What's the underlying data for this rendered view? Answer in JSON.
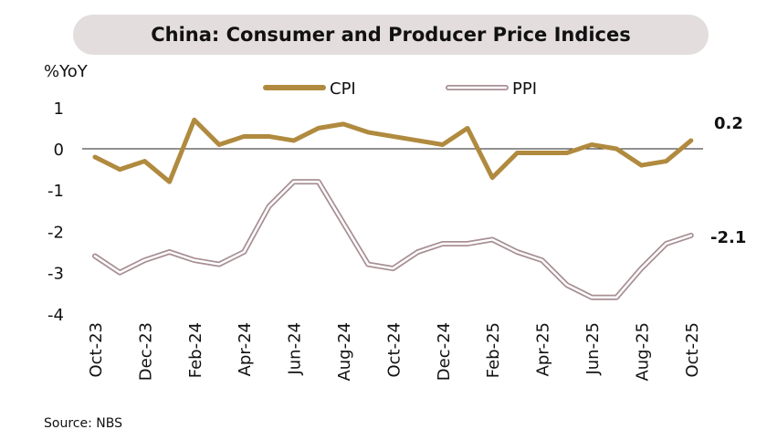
{
  "chart_data": {
    "type": "line",
    "title": "China: Consumer and Producer Price Indices",
    "ylabel": "%YoY",
    "source": "Source: NBS",
    "ylim": [
      -4,
      1
    ],
    "yticks": [
      "1",
      "0",
      "-1",
      "-2",
      "-3",
      "-4"
    ],
    "x": [
      "Oct-23",
      "Nov-23",
      "Dec-23",
      "Jan-24",
      "Feb-24",
      "Mar-24",
      "Apr-24",
      "May-24",
      "Jun-24",
      "Jul-24",
      "Aug-24",
      "Sep-24",
      "Oct-24",
      "Nov-24",
      "Dec-24",
      "Jan-25",
      "Feb-25",
      "Mar-25",
      "Apr-25",
      "May-25",
      "Jun-25",
      "Jul-25",
      "Aug-25",
      "Sep-25",
      "Oct-25"
    ],
    "xtick_labels": [
      "Oct-23",
      "Dec-23",
      "Feb-24",
      "Apr-24",
      "Jun-24",
      "Aug-24",
      "Oct-24",
      "Dec-24",
      "Feb-25",
      "Apr-25",
      "Jun-25",
      "Aug-25",
      "Oct-25"
    ],
    "legend_position": "top",
    "series": [
      {
        "name": "CPI",
        "color": "#b08a3e",
        "end_label": "0.2",
        "values": [
          -0.2,
          -0.5,
          -0.3,
          -0.8,
          0.7,
          0.1,
          0.3,
          0.3,
          0.2,
          0.5,
          0.6,
          0.4,
          0.3,
          0.2,
          0.1,
          0.5,
          -0.7,
          -0.1,
          -0.1,
          -0.1,
          0.1,
          0.0,
          -0.4,
          -0.3,
          0.2
        ]
      },
      {
        "name": "PPI",
        "color": "#a89095",
        "end_label": "-2.1",
        "values": [
          -2.6,
          -3.0,
          -2.7,
          -2.5,
          -2.7,
          -2.8,
          -2.5,
          -1.4,
          -0.8,
          -0.8,
          -1.8,
          -2.8,
          -2.9,
          -2.5,
          -2.3,
          -2.3,
          -2.2,
          -2.5,
          -2.7,
          -3.3,
          -3.6,
          -3.6,
          -2.9,
          -2.3,
          -2.1
        ]
      }
    ]
  }
}
